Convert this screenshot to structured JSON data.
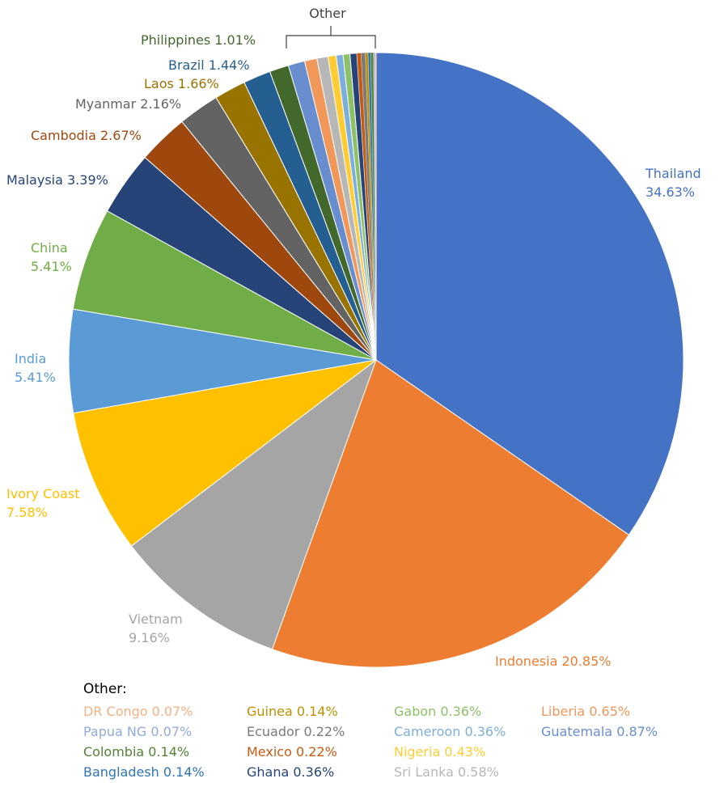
{
  "chart_data": {
    "type": "pie",
    "group_label": "Other",
    "slices": [
      {
        "name": "Thailand",
        "value": 34.63,
        "label": "34.63%",
        "color": "#4472C4"
      },
      {
        "name": "Indonesia",
        "value": 20.85,
        "label": "20.85%",
        "color": "#ED7D31"
      },
      {
        "name": "Vietnam",
        "value": 9.16,
        "label": "9.16%",
        "color": "#A5A5A5"
      },
      {
        "name": "Ivory Coast",
        "value": 7.58,
        "label": "7.58%",
        "color": "#FFC000"
      },
      {
        "name": "India",
        "value": 5.41,
        "label": "5.41%",
        "color": "#5B9BD5"
      },
      {
        "name": "China",
        "value": 5.41,
        "label": "5.41%",
        "color": "#70AD47"
      },
      {
        "name": "Malaysia",
        "value": 3.39,
        "label": "3.39%",
        "color": "#264478"
      },
      {
        "name": "Cambodia",
        "value": 2.67,
        "label": "2.67%",
        "color": "#9E480E"
      },
      {
        "name": "Myanmar",
        "value": 2.16,
        "label": "2.16%",
        "color": "#636363"
      },
      {
        "name": "Laos",
        "value": 1.66,
        "label": "1.66%",
        "color": "#997300"
      },
      {
        "name": "Brazil",
        "value": 1.44,
        "label": "1.44%",
        "color": "#255E91"
      },
      {
        "name": "Philippines",
        "value": 1.01,
        "label": "1.01%",
        "color": "#43682B"
      },
      {
        "name": "Guatemala",
        "value": 0.87,
        "label": "0.87%",
        "color": "#698ED0"
      },
      {
        "name": "Liberia",
        "value": 0.65,
        "label": "0.65%",
        "color": "#F1975A"
      },
      {
        "name": "Sri Lanka",
        "value": 0.58,
        "label": "0.58%",
        "color": "#B7B7B7"
      },
      {
        "name": "Nigeria",
        "value": 0.43,
        "label": "0.43%",
        "color": "#FFCD33"
      },
      {
        "name": "Cameroon",
        "value": 0.36,
        "label": "0.36%",
        "color": "#7CAFDD"
      },
      {
        "name": "Gabon",
        "value": 0.36,
        "label": "0.36%",
        "color": "#8CC168"
      },
      {
        "name": "Ghana",
        "value": 0.36,
        "label": "0.36%",
        "color": "#264478"
      },
      {
        "name": "Mexico",
        "value": 0.22,
        "label": "0.22%",
        "color": "#C55A11"
      },
      {
        "name": "Ecuador",
        "value": 0.22,
        "label": "0.22%",
        "color": "#7B7B7B"
      },
      {
        "name": "Guinea",
        "value": 0.14,
        "label": "0.14%",
        "color": "#BF8F00"
      },
      {
        "name": "Bangladesh",
        "value": 0.14,
        "label": "0.14%",
        "color": "#2E75B6"
      },
      {
        "name": "Colombia",
        "value": 0.14,
        "label": "0.14%",
        "color": "#548235"
      },
      {
        "name": "Papua NG",
        "value": 0.07,
        "label": "0.07%",
        "color": "#8FAADC"
      },
      {
        "name": "DR Congo",
        "value": 0.07,
        "label": "0.07%",
        "color": "#F4B183"
      }
    ]
  },
  "other_legend": {
    "title": "Other:",
    "columns": [
      [
        {
          "text": "DR Congo 0.07%",
          "color": "#F4B183"
        },
        {
          "text": "Papua NG 0.07%",
          "color": "#8FAADC"
        },
        {
          "text": "Colombia 0.14%",
          "color": "#548235"
        },
        {
          "text": "Bangladesh 0.14%",
          "color": "#2E75B6"
        }
      ],
      [
        {
          "text": "Guinea 0.14%",
          "color": "#BF8F00"
        },
        {
          "text": "Ecuador 0.22%",
          "color": "#7B7B7B"
        },
        {
          "text": "Mexico 0.22%",
          "color": "#C55A11"
        },
        {
          "text": "Ghana 0.36%",
          "color": "#264478"
        }
      ],
      [
        {
          "text": "Gabon 0.36%",
          "color": "#8CC168"
        },
        {
          "text": "Cameroon 0.36%",
          "color": "#7CAFDD"
        },
        {
          "text": "Nigeria 0.43%",
          "color": "#FFCD33"
        },
        {
          "text": "Sri Lanka 0.58%",
          "color": "#B7B7B7"
        }
      ],
      [
        {
          "text": "Liberia 0.65%",
          "color": "#F1975A"
        },
        {
          "text": "Guatemala 0.87%",
          "color": "#698ED0"
        }
      ]
    ]
  }
}
